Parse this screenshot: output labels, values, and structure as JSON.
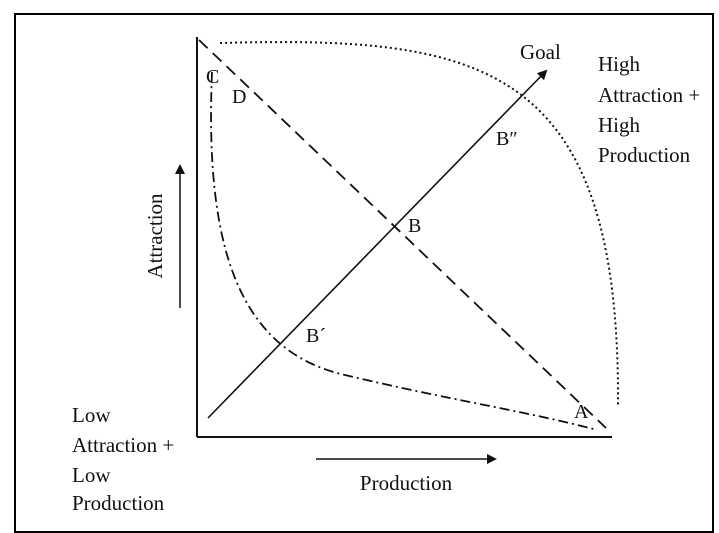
{
  "labels": {
    "goal": "Goal",
    "high_line1": "High",
    "high_line2": "Attraction +",
    "high_line3": "High",
    "high_line4": "Production",
    "low_line1": "Low",
    "low_line2": "Attraction +",
    "low_line3": "Low",
    "low_line4": "Production",
    "y_axis": "Attraction",
    "x_axis": "Production"
  },
  "points": {
    "a": "A",
    "b": "B",
    "b_prime": "B´",
    "b_double_prime": "B″",
    "c": "C",
    "d": "D"
  },
  "colors": {
    "ink": "#111111",
    "frame": "#000000",
    "background": "#ffffff"
  }
}
